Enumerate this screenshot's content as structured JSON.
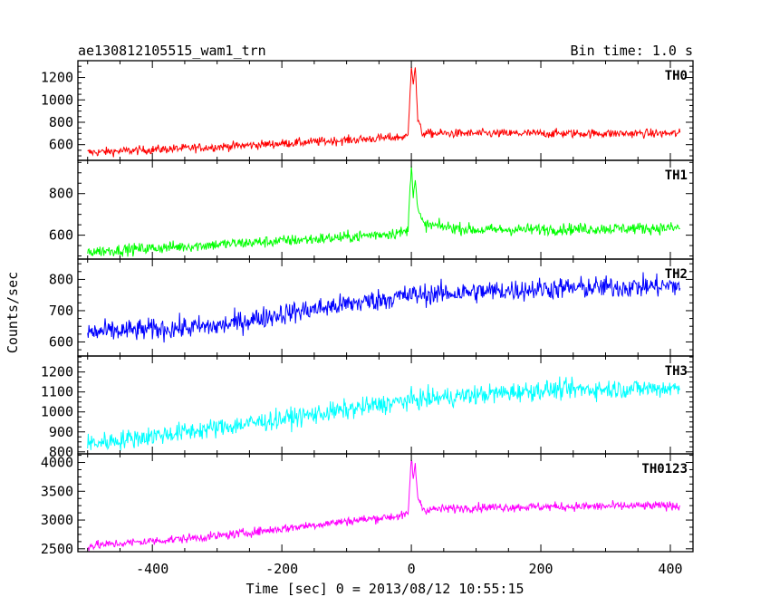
{
  "chart_data": {
    "type": "line",
    "title_left": "ae130812105515_wam1_trn",
    "title_right": "Bin time: 1.0 s",
    "xlabel": "Time [sec] 0 = 2013/08/12 10:55:15",
    "ylabel": "Counts/sec",
    "xlim": [
      -515,
      435
    ],
    "x_ticks": [
      "-400",
      "-200",
      "0",
      "200",
      "400"
    ],
    "x_tick_values": [
      -400,
      -200,
      0,
      200,
      400
    ],
    "x_start": -500,
    "x_end": 415,
    "panels": [
      {
        "name": "TH0",
        "color": "#ff0000",
        "ylim": [
          460,
          1350
        ],
        "y_ticks": [
          "600",
          "800",
          "1000",
          "1200"
        ],
        "y_tick_values": [
          600,
          800,
          1000,
          1200
        ],
        "baseline": [
          [
            -500,
            530
          ],
          [
            -300,
            580
          ],
          [
            -100,
            640
          ],
          [
            -10,
            670
          ],
          [
            20,
            700
          ],
          [
            100,
            700
          ],
          [
            415,
            700
          ]
        ],
        "noise": 28,
        "burst": [
          [
            -5,
            680
          ],
          [
            0,
            1320
          ],
          [
            3,
            1150
          ],
          [
            6,
            1300
          ],
          [
            10,
            820
          ],
          [
            16,
            720
          ]
        ]
      },
      {
        "name": "TH1",
        "color": "#00ff00",
        "ylim": [
          485,
          960
        ],
        "y_ticks": [
          "600",
          "800"
        ],
        "y_tick_values": [
          600,
          800
        ],
        "baseline": [
          [
            -500,
            520
          ],
          [
            -300,
            555
          ],
          [
            -100,
            590
          ],
          [
            -10,
            615
          ],
          [
            20,
            650
          ],
          [
            100,
            625
          ],
          [
            415,
            635
          ]
        ],
        "noise": 20,
        "burst": [
          [
            -5,
            640
          ],
          [
            0,
            940
          ],
          [
            3,
            800
          ],
          [
            6,
            870
          ],
          [
            10,
            720
          ],
          [
            18,
            660
          ]
        ]
      },
      {
        "name": "TH2",
        "color": "#0000ff",
        "ylim": [
          555,
          865
        ],
        "y_ticks": [
          "600",
          "700",
          "800"
        ],
        "y_tick_values": [
          600,
          700,
          800
        ],
        "baseline": [
          [
            -500,
            630
          ],
          [
            -300,
            650
          ],
          [
            -200,
            690
          ],
          [
            -100,
            720
          ],
          [
            0,
            750
          ],
          [
            200,
            770
          ],
          [
            415,
            780
          ]
        ],
        "noise": 25,
        "burst": []
      },
      {
        "name": "TH3",
        "color": "#00ffff",
        "ylim": [
          790,
          1280
        ],
        "y_ticks": [
          "800",
          "900",
          "1000",
          "1100",
          "1200"
        ],
        "y_tick_values": [
          800,
          900,
          1000,
          1100,
          1200
        ],
        "baseline": [
          [
            -500,
            840
          ],
          [
            -300,
            920
          ],
          [
            -100,
            1010
          ],
          [
            0,
            1060
          ],
          [
            200,
            1110
          ],
          [
            415,
            1120
          ]
        ],
        "noise": 35,
        "burst": []
      },
      {
        "name": "TH0123",
        "color": "#ff00ff",
        "ylim": [
          2450,
          4150
        ],
        "y_ticks": [
          "2500",
          "3000",
          "3500",
          "4000"
        ],
        "y_tick_values": [
          2500,
          3000,
          3500,
          4000
        ],
        "baseline": [
          [
            -500,
            2550
          ],
          [
            -300,
            2720
          ],
          [
            -100,
            2980
          ],
          [
            -10,
            3080
          ],
          [
            20,
            3180
          ],
          [
            100,
            3220
          ],
          [
            415,
            3250
          ]
        ],
        "noise": 55,
        "burst": [
          [
            -5,
            3100
          ],
          [
            0,
            4100
          ],
          [
            3,
            3700
          ],
          [
            6,
            3950
          ],
          [
            10,
            3400
          ],
          [
            18,
            3200
          ]
        ]
      }
    ]
  }
}
